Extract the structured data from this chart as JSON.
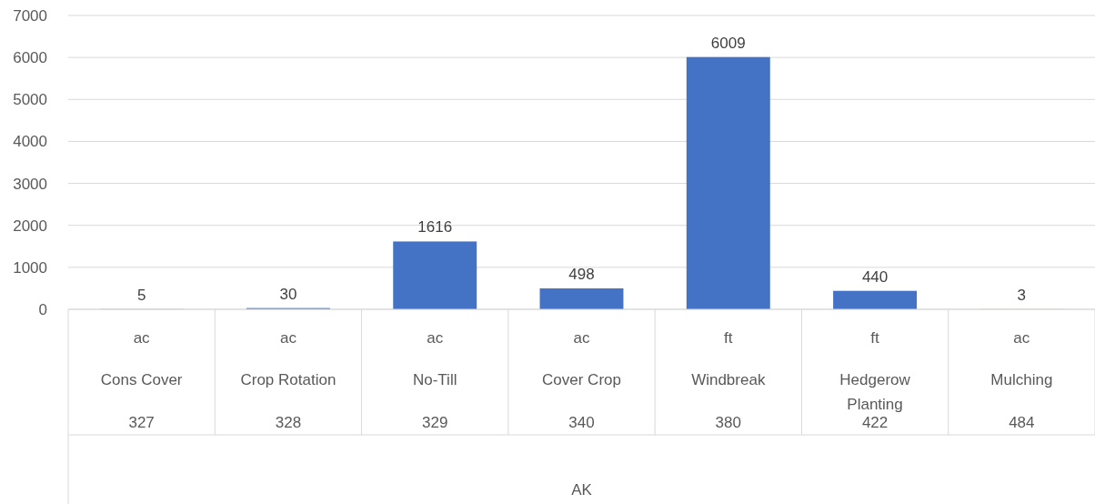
{
  "chart_data": {
    "type": "bar",
    "categories": [
      "ac\nCons Cover\n327",
      "ac\nCrop Rotation\n328",
      "ac\nNo-Till\n329",
      "ac\nCover Crop\n340",
      "ft\nWindbreak\n380",
      "ft\nHedgerow Planting\n422",
      "ac\nMulching\n484"
    ],
    "values": [
      5,
      30,
      1616,
      498,
      6009,
      440,
      3
    ],
    "color": "#4472c4",
    "annotations": [
      "AK"
    ],
    "ylim": [
      0,
      7000
    ],
    "yticks": [
      0,
      1000,
      2000,
      3000,
      4000,
      5000,
      6000,
      7000
    ],
    "grid": "y",
    "data_labels": true
  }
}
